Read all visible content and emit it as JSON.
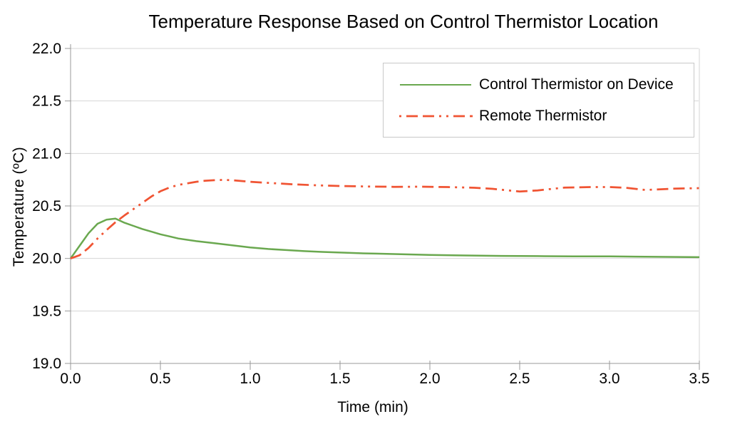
{
  "colors": {
    "background": "#ffffff",
    "gridline": "#d4d4d4",
    "axis": "#999999",
    "text": "#000000",
    "legend_border": "#c8c8c8",
    "series_green": "#6aa84f",
    "series_red": "#f05433"
  },
  "chart_data": {
    "type": "line",
    "title": "Temperature Response Based on Control Thermistor Location",
    "xlabel": "Time (min)",
    "ylabel": "Temperature (ºC)",
    "xlim": [
      0.0,
      3.5
    ],
    "ylim": [
      19.0,
      22.0
    ],
    "x_ticks": [
      0.0,
      0.5,
      1.0,
      1.5,
      2.0,
      2.5,
      3.0,
      3.5
    ],
    "x_tick_labels": [
      "0.0",
      "0.5",
      "1.0",
      "1.5",
      "2.0",
      "2.5",
      "3.0",
      "3.5"
    ],
    "y_ticks": [
      19.0,
      19.5,
      20.0,
      20.5,
      21.0,
      21.5,
      22.0
    ],
    "y_tick_labels": [
      "19.0",
      "19.5",
      "20.0",
      "20.5",
      "21.0",
      "21.5",
      "22.0"
    ],
    "grid": "horizontal-only",
    "legend_position": "top-right-inside",
    "series": [
      {
        "name": "Control Thermistor on Device",
        "color": "#6aa84f",
        "line_style": "solid",
        "points": [
          [
            0.0,
            20.0
          ],
          [
            0.05,
            20.12
          ],
          [
            0.1,
            20.24
          ],
          [
            0.15,
            20.33
          ],
          [
            0.2,
            20.37
          ],
          [
            0.25,
            20.38
          ],
          [
            0.3,
            20.34
          ],
          [
            0.35,
            20.31
          ],
          [
            0.4,
            20.28
          ],
          [
            0.45,
            20.255
          ],
          [
            0.5,
            20.23
          ],
          [
            0.55,
            20.21
          ],
          [
            0.6,
            20.19
          ],
          [
            0.7,
            20.165
          ],
          [
            0.8,
            20.145
          ],
          [
            0.9,
            20.125
          ],
          [
            1.0,
            20.105
          ],
          [
            1.1,
            20.09
          ],
          [
            1.2,
            20.08
          ],
          [
            1.3,
            20.07
          ],
          [
            1.4,
            20.062
          ],
          [
            1.5,
            20.056
          ],
          [
            1.6,
            20.05
          ],
          [
            1.7,
            20.046
          ],
          [
            1.8,
            20.042
          ],
          [
            1.9,
            20.038
          ],
          [
            2.0,
            20.034
          ],
          [
            2.2,
            20.028
          ],
          [
            2.4,
            20.024
          ],
          [
            2.6,
            20.022
          ],
          [
            2.8,
            20.02
          ],
          [
            3.0,
            20.02
          ],
          [
            3.2,
            20.016
          ],
          [
            3.5,
            20.012
          ]
        ]
      },
      {
        "name": "Remote Thermistor",
        "color": "#f05433",
        "line_style": "long-dash-dash-dot-dot",
        "points": [
          [
            0.0,
            20.0
          ],
          [
            0.05,
            20.03
          ],
          [
            0.1,
            20.1
          ],
          [
            0.15,
            20.19
          ],
          [
            0.2,
            20.27
          ],
          [
            0.25,
            20.345
          ],
          [
            0.3,
            20.41
          ],
          [
            0.35,
            20.47
          ],
          [
            0.4,
            20.53
          ],
          [
            0.45,
            20.59
          ],
          [
            0.5,
            20.64
          ],
          [
            0.55,
            20.675
          ],
          [
            0.6,
            20.7
          ],
          [
            0.65,
            20.715
          ],
          [
            0.7,
            20.73
          ],
          [
            0.75,
            20.74
          ],
          [
            0.8,
            20.745
          ],
          [
            0.85,
            20.748
          ],
          [
            0.9,
            20.745
          ],
          [
            1.0,
            20.73
          ],
          [
            1.1,
            20.72
          ],
          [
            1.25,
            20.705
          ],
          [
            1.4,
            20.695
          ],
          [
            1.5,
            20.69
          ],
          [
            1.65,
            20.685
          ],
          [
            1.8,
            20.682
          ],
          [
            1.95,
            20.683
          ],
          [
            2.1,
            20.68
          ],
          [
            2.25,
            20.673
          ],
          [
            2.35,
            20.663
          ],
          [
            2.5,
            20.637
          ],
          [
            2.6,
            20.648
          ],
          [
            2.75,
            20.675
          ],
          [
            2.9,
            20.68
          ],
          [
            3.0,
            20.68
          ],
          [
            3.1,
            20.672
          ],
          [
            3.2,
            20.652
          ],
          [
            3.35,
            20.664
          ],
          [
            3.5,
            20.67
          ]
        ]
      }
    ]
  }
}
